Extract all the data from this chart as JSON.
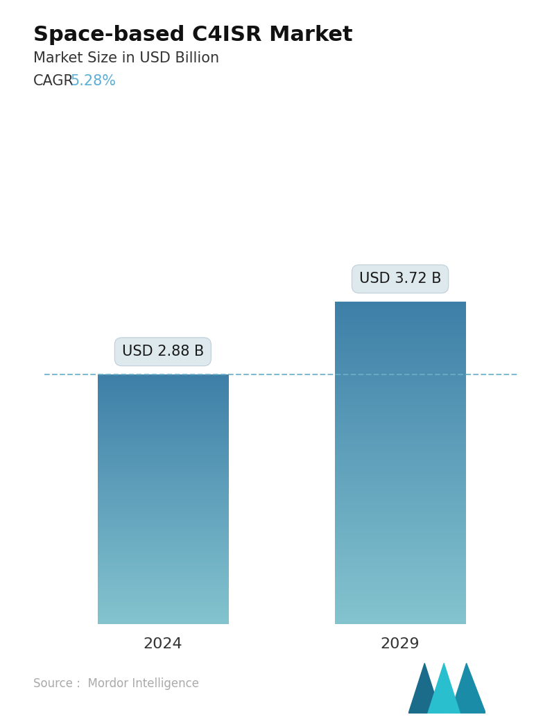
{
  "title": "Space-based C4ISR Market",
  "subtitle": "Market Size in USD Billion",
  "cagr_label": "CAGR",
  "cagr_value": "5.28%",
  "cagr_color": "#5BAED6",
  "categories": [
    "2024",
    "2029"
  ],
  "values": [
    2.88,
    3.72
  ],
  "bar_labels": [
    "USD 2.88 B",
    "USD 3.72 B"
  ],
  "bar_top_color": "#3E7FA8",
  "bar_bottom_color": "#84C4CF",
  "dashed_line_color": "#6AAEC8",
  "dashed_line_value": 2.88,
  "background_color": "#FFFFFF",
  "source_text": "Source :  Mordor Intelligence",
  "source_color": "#AAAAAA",
  "title_fontsize": 22,
  "subtitle_fontsize": 15,
  "cagr_fontsize": 15,
  "xlabel_fontsize": 16,
  "annotation_fontsize": 15,
  "ylim": [
    0,
    4.8
  ],
  "bar_width": 0.55
}
